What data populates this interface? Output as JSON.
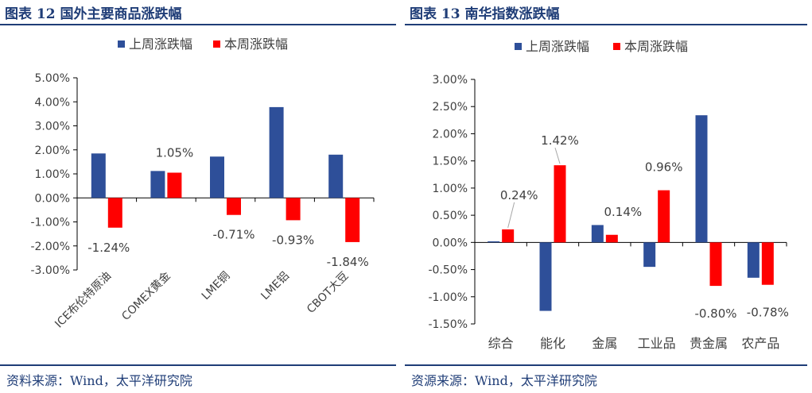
{
  "colors": {
    "series1": "#2e4f99",
    "series2": "#ff0000",
    "title": "#1f3d77",
    "text": "#404040",
    "axis": "#000000"
  },
  "panels": [
    {
      "title": "图表 12  国外主要商品涨跌幅",
      "source": "资料来源：Wind，太平洋研究院"
    },
    {
      "title": "图表 13  南华指数涨跌幅",
      "source": "资源来源：Wind，太平洋研究院"
    }
  ],
  "chart_data": [
    {
      "type": "bar",
      "categories": [
        "ICE布伦特原油",
        "COMEX黄金",
        "LME铜",
        "LME铝",
        "CBOT大豆"
      ],
      "series": [
        {
          "name": "上周涨跌幅",
          "values": [
            1.85,
            1.12,
            1.72,
            3.78,
            1.8
          ]
        },
        {
          "name": "本周涨跌幅",
          "values": [
            -1.24,
            1.05,
            -0.71,
            -0.93,
            -1.84
          ]
        }
      ],
      "data_labels": {
        "series": 1,
        "texts": [
          "-1.24%",
          "1.05%",
          "-0.71%",
          "-0.93%",
          "-1.84%"
        ]
      },
      "yticks": [
        "5.00%",
        "4.00%",
        "3.00%",
        "2.00%",
        "1.00%",
        "0.00%",
        "-1.00%",
        "-2.00%",
        "-3.00%"
      ],
      "ylim": [
        -3,
        5
      ],
      "ystep": 1,
      "rotate_xlabels": true,
      "legend": "top"
    },
    {
      "type": "bar",
      "categories": [
        "综合",
        "能化",
        "金属",
        "工业品",
        "贵金属",
        "农产品"
      ],
      "series": [
        {
          "name": "上周涨跌幅",
          "values": [
            0.02,
            -1.26,
            0.32,
            -0.45,
            2.34,
            -0.65
          ]
        },
        {
          "name": "本周涨跌幅",
          "values": [
            0.24,
            1.42,
            0.14,
            0.96,
            -0.8,
            -0.78
          ]
        }
      ],
      "data_labels": {
        "series": 1,
        "texts": [
          "0.24%",
          "1.42%",
          "0.14%",
          "0.96%",
          "-0.80%",
          "-0.78%"
        ]
      },
      "yticks": [
        "3.00%",
        "2.50%",
        "2.00%",
        "1.50%",
        "1.00%",
        "0.50%",
        "0.00%",
        "-0.50%",
        "-1.00%",
        "-1.50%"
      ],
      "ylim": [
        -1.5,
        3
      ],
      "ystep": 0.5,
      "rotate_xlabels": false,
      "legend": "top"
    }
  ]
}
